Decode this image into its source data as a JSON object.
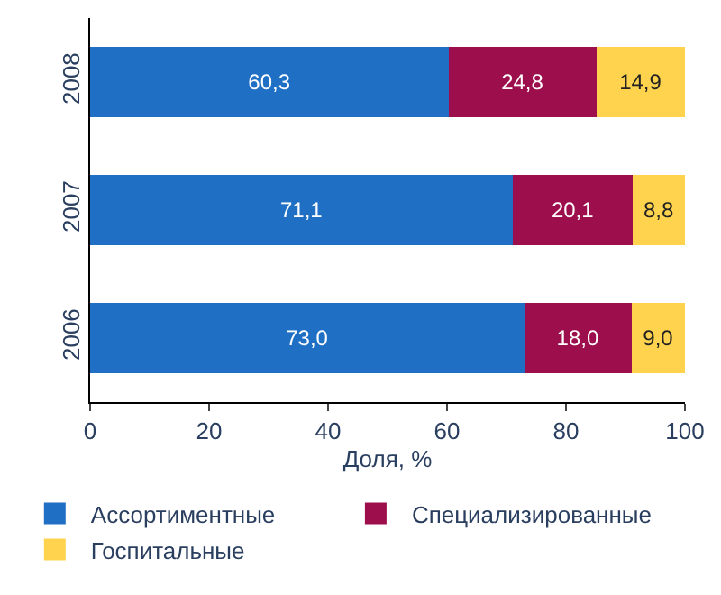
{
  "chart_data": {
    "type": "bar",
    "orientation": "horizontal",
    "stacked": true,
    "categories": [
      "2008",
      "2007",
      "2006"
    ],
    "xlabel": "Доля, %",
    "xlim": [
      0,
      100
    ],
    "xticks": [
      0,
      20,
      40,
      60,
      80,
      100
    ],
    "legend": "bottom",
    "series": [
      {
        "name": "Ассортиментные",
        "color": "#1f6fc4",
        "values": [
          60.3,
          71.1,
          73.0
        ],
        "value_labels": [
          "60,3",
          "71,1",
          "73,0"
        ]
      },
      {
        "name": "Специализированные",
        "color": "#9c0f4c",
        "values": [
          24.8,
          20.1,
          18.0
        ],
        "value_labels": [
          "24,8",
          "20,1",
          "18,0"
        ]
      },
      {
        "name": "Госпитальные",
        "color": "#ffd34d",
        "values": [
          14.9,
          8.8,
          9.0
        ],
        "value_labels": [
          "14,9",
          "8,8",
          "9,0"
        ]
      }
    ]
  }
}
